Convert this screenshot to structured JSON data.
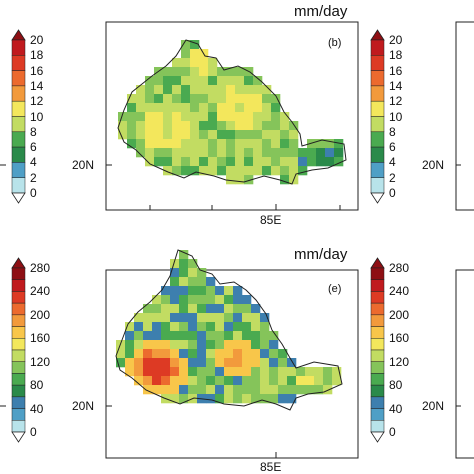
{
  "panels": {
    "top": {
      "unit": "mm/day",
      "panel_label": "(b)",
      "lat_label": "20N",
      "lon_label": "85E",
      "colorbar_ticks": [
        "20",
        "18",
        "16",
        "14",
        "12",
        "10",
        "8",
        "6",
        "4",
        "2",
        "0"
      ]
    },
    "bottom": {
      "unit": "mm/day",
      "panel_label": "(e)",
      "lat_label": "20N",
      "lon_label": "85E",
      "colorbar_ticks": [
        "280",
        "240",
        "200",
        "160",
        "120",
        "80",
        "40",
        "0"
      ]
    }
  },
  "neighbor_panels": {
    "lat_label": "20N"
  },
  "colors": {
    "palette": [
      "#e0f3f6",
      "#b8e3ea",
      "#7fc4d6",
      "#4f9fc6",
      "#3d7fae",
      "#2a8a4a",
      "#4aaa50",
      "#85c45a",
      "#c2dc62",
      "#f3e75c",
      "#f8c64a",
      "#f29a3c",
      "#ec6a2e",
      "#dd3a24",
      "#c01a1e",
      "#8e0f14"
    ]
  }
}
